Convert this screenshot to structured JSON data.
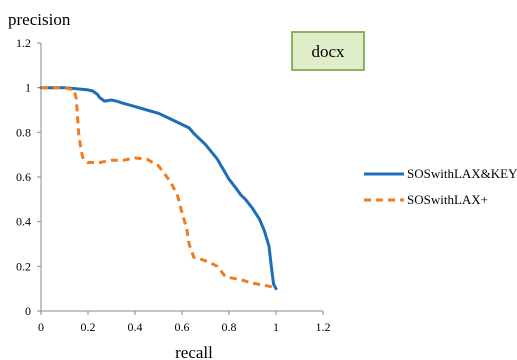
{
  "chart_data": {
    "type": "line",
    "xlabel": "recall",
    "ylabel": "precision",
    "xlim": [
      0,
      1.2
    ],
    "ylim": [
      0,
      1.2
    ],
    "x_ticks": [
      "0",
      "0.2",
      "0.4",
      "0.6",
      "0.8",
      "1",
      "1.2"
    ],
    "y_ticks": [
      "0",
      "0.2",
      "0.4",
      "0.6",
      "0.8",
      "1",
      "1.2"
    ],
    "grid": false,
    "legend_position": "right",
    "annotation": "docx",
    "series": [
      {
        "name": "SOSwithLAX&KEY",
        "color": "#1f6db5",
        "style": "solid",
        "x": [
          0,
          0.05,
          0.1,
          0.15,
          0.2,
          0.22,
          0.24,
          0.25,
          0.27,
          0.3,
          0.32,
          0.35,
          0.4,
          0.45,
          0.5,
          0.55,
          0.6,
          0.63,
          0.65,
          0.7,
          0.75,
          0.8,
          0.83,
          0.85,
          0.87,
          0.9,
          0.93,
          0.95,
          0.97,
          0.98,
          0.99,
          1.0
        ],
        "values": [
          1.0,
          1.0,
          1.0,
          0.995,
          0.99,
          0.985,
          0.97,
          0.955,
          0.94,
          0.945,
          0.94,
          0.93,
          0.915,
          0.9,
          0.885,
          0.86,
          0.835,
          0.82,
          0.795,
          0.745,
          0.68,
          0.59,
          0.55,
          0.52,
          0.5,
          0.46,
          0.41,
          0.36,
          0.29,
          0.2,
          0.12,
          0.1
        ]
      },
      {
        "name": "SOSwithLAX+",
        "color": "#f07c22",
        "style": "dashed",
        "x": [
          0,
          0.05,
          0.1,
          0.14,
          0.15,
          0.16,
          0.17,
          0.18,
          0.2,
          0.25,
          0.3,
          0.35,
          0.4,
          0.45,
          0.5,
          0.55,
          0.58,
          0.6,
          0.62,
          0.63,
          0.65,
          0.67,
          0.7,
          0.75,
          0.78,
          0.8,
          0.85,
          0.9,
          0.95,
          1.0
        ],
        "values": [
          1.0,
          1.0,
          1.0,
          0.99,
          0.95,
          0.8,
          0.72,
          0.68,
          0.665,
          0.665,
          0.675,
          0.675,
          0.685,
          0.68,
          0.65,
          0.58,
          0.52,
          0.44,
          0.37,
          0.3,
          0.24,
          0.235,
          0.225,
          0.2,
          0.16,
          0.15,
          0.14,
          0.125,
          0.115,
          0.105
        ]
      }
    ]
  }
}
